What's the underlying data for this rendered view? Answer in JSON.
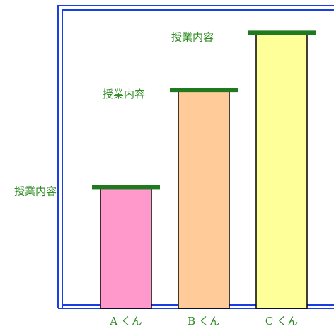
{
  "chart_data": {
    "type": "bar",
    "categories": [
      "A くん",
      "B くん",
      "C くん"
    ],
    "values": [
      2.1,
      3.8,
      4.8
    ],
    "ylim": [
      0,
      5.3
    ],
    "bar_labels": [
      "授業内容",
      "授業内容",
      "授業内容"
    ],
    "colors": {
      "bars": [
        "#ff99cc",
        "#ffcc99",
        "#ffff99"
      ],
      "cap": "#1f7a1f",
      "frame": "#1a3ee6",
      "label_text": "#2e8b22"
    }
  }
}
